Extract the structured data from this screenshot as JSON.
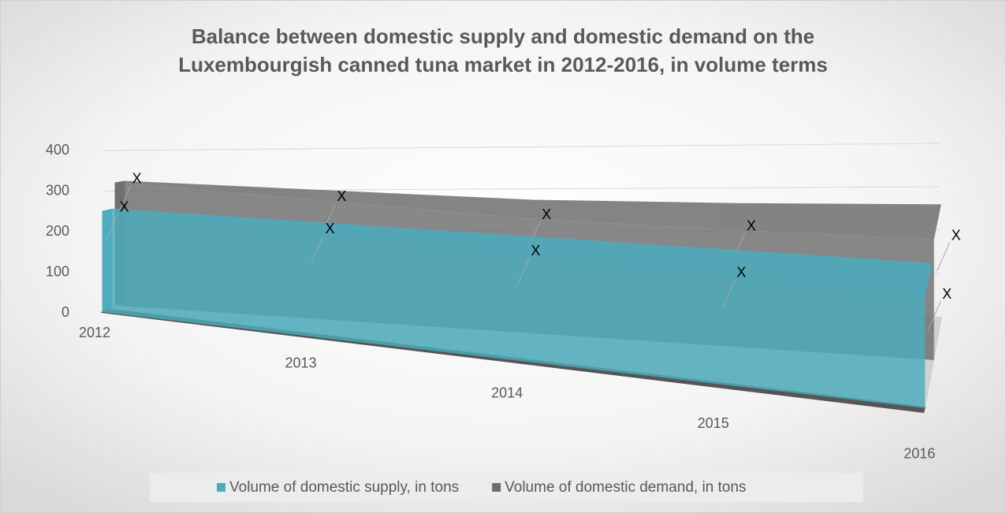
{
  "chart_data": {
    "type": "area3d",
    "title": "Balance between domestic supply and domestic demand on the Luxembourgish canned tuna market in 2012-2016, in volume terms",
    "categories": [
      "2012",
      "2013",
      "2014",
      "2015",
      "2016"
    ],
    "series": [
      {
        "name": "Volume of domestic supply, in tons",
        "color": "#4aacbd",
        "values": [
          230,
          235,
          240,
          245,
          250
        ],
        "value_labels": [
          "X",
          "X",
          "X",
          "X",
          "X"
        ]
      },
      {
        "name": "Volume of domestic demand, in tons",
        "color": "#6e6e6e",
        "values": [
          290,
          280,
          270,
          275,
          285
        ],
        "value_labels": [
          "X",
          "X",
          "X",
          "X",
          "X"
        ]
      }
    ],
    "ylim": [
      0,
      400
    ],
    "yticks": [
      0,
      100,
      200,
      300,
      400
    ],
    "grid": true,
    "legend": "bottom"
  }
}
